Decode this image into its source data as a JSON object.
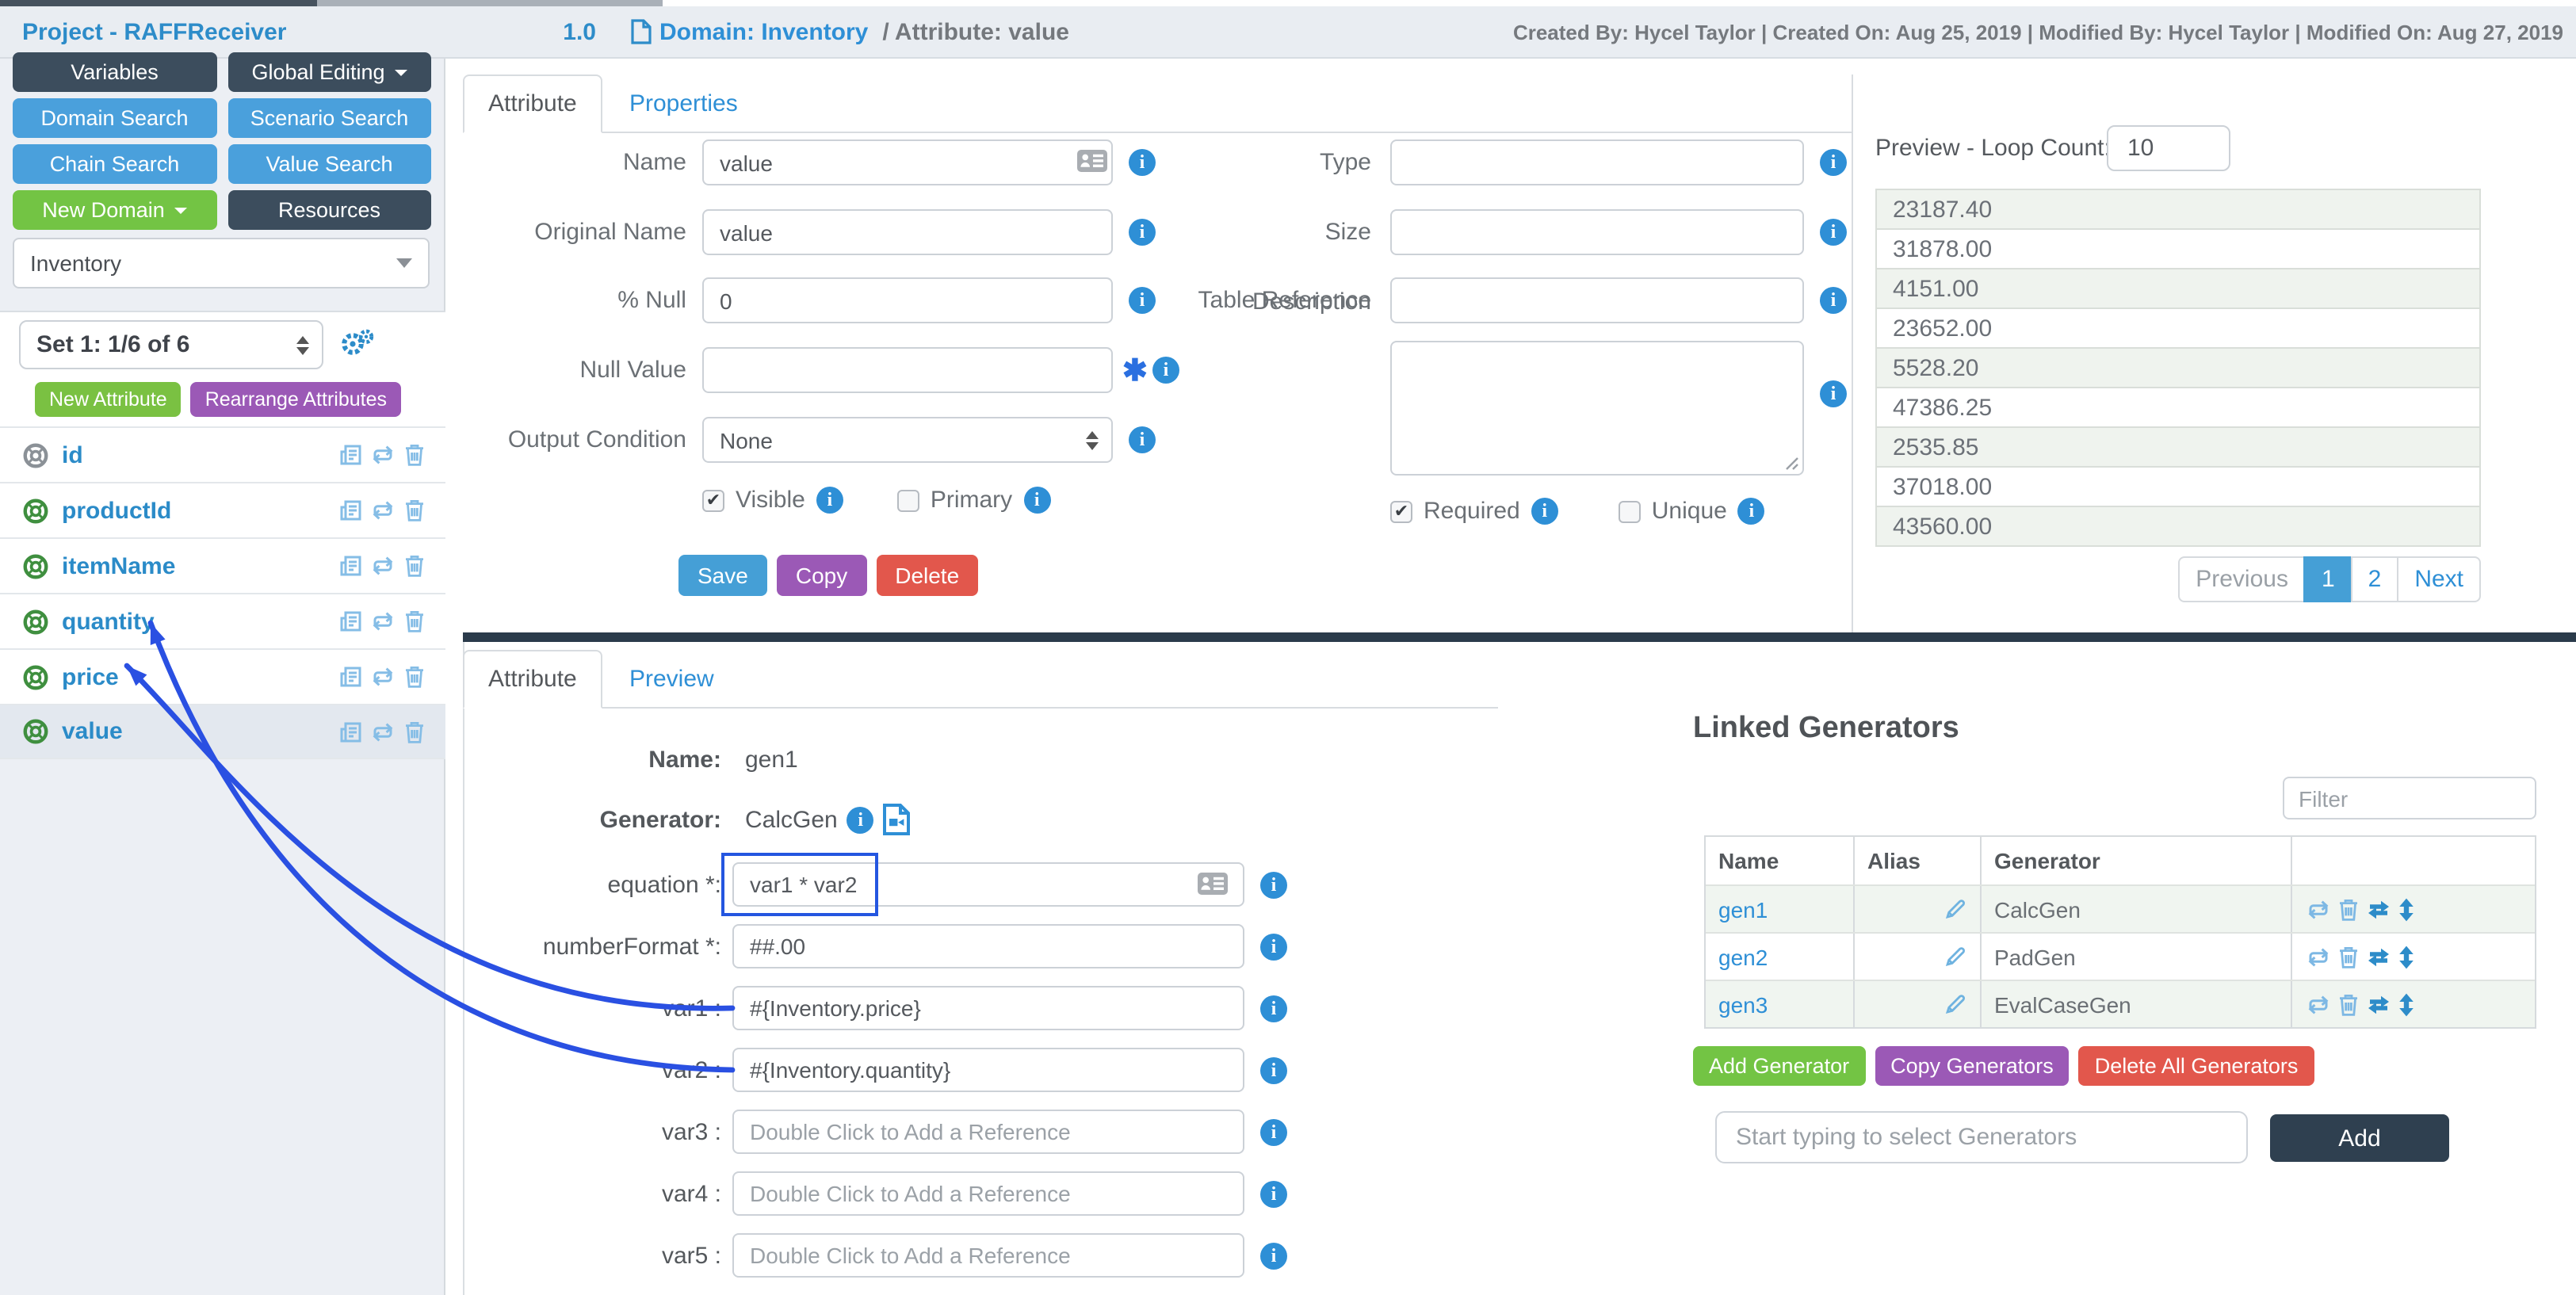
{
  "header": {
    "project_title": "Project - RAFFReceiver",
    "version": "1.0",
    "breadcrumb": {
      "domain_label": "Domain: Inventory",
      "attribute_label": "/ Attribute: value"
    },
    "meta": "Created By: Hycel Taylor | Created On: Aug 25, 2019 | Modified By: Hycel Taylor | Modified On: Aug 27, 2019"
  },
  "sidebar": {
    "buttons": [
      {
        "label": "Variables",
        "style": "dark",
        "caret": false
      },
      {
        "label": "Global Editing",
        "style": "dark",
        "caret": true
      },
      {
        "label": "Domain Search",
        "style": "blue",
        "caret": false
      },
      {
        "label": "Scenario Search",
        "style": "blue",
        "caret": false
      },
      {
        "label": "Chain Search",
        "style": "blue",
        "caret": false
      },
      {
        "label": "Value Search",
        "style": "blue",
        "caret": false
      },
      {
        "label": "New Domain",
        "style": "green",
        "caret": true
      },
      {
        "label": "Resources",
        "style": "dark",
        "caret": false
      }
    ],
    "domain_select_value": "Inventory",
    "set_select_value": "Set 1: 1/6 of 6",
    "new_attribute_label": "New Attribute",
    "rearrange_label": "Rearrange Attributes",
    "attributes": [
      {
        "name": "id",
        "icon": "gray",
        "selected": false
      },
      {
        "name": "productId",
        "icon": "green",
        "selected": false
      },
      {
        "name": "itemName",
        "icon": "green",
        "selected": false
      },
      {
        "name": "quantity",
        "icon": "green",
        "selected": false
      },
      {
        "name": "price",
        "icon": "green",
        "selected": false
      },
      {
        "name": "value",
        "icon": "green",
        "selected": true
      }
    ]
  },
  "attribute_form": {
    "tab_attribute": "Attribute",
    "tab_properties": "Properties",
    "fields": {
      "name": {
        "label": "Name",
        "value": "value"
      },
      "original_name": {
        "label": "Original Name",
        "value": "value"
      },
      "pct_null": {
        "label": "% Null",
        "value": "0"
      },
      "null_value": {
        "label": "Null Value",
        "value": ""
      },
      "output_condition": {
        "label": "Output Condition",
        "value": "None"
      },
      "type": {
        "label": "Type",
        "value": ""
      },
      "size": {
        "label": "Size",
        "value": ""
      },
      "table_reference": {
        "label": "Table Reference",
        "value": ""
      },
      "description": {
        "label": "Description",
        "value": ""
      }
    },
    "checkboxes": {
      "visible": {
        "label": "Visible",
        "checked": true
      },
      "primary": {
        "label": "Primary",
        "checked": false
      },
      "required": {
        "label": "Required",
        "checked": true
      },
      "unique": {
        "label": "Unique",
        "checked": false
      }
    },
    "buttons": {
      "save": "Save",
      "copy": "Copy",
      "delete": "Delete"
    }
  },
  "preview_panel": {
    "label": "Preview - Loop Count:",
    "loop_count": "10",
    "values": [
      "23187.40",
      "31878.00",
      "4151.00",
      "23652.00",
      "5528.20",
      "47386.25",
      "2535.85",
      "37018.00",
      "43560.00"
    ],
    "pagination": {
      "previous": "Previous",
      "pages": [
        "1",
        "2"
      ],
      "active_page": "1",
      "next": "Next"
    }
  },
  "generator_form": {
    "tab_attribute": "Attribute",
    "tab_preview": "Preview",
    "name_label": "Name:",
    "name_value": "gen1",
    "generator_label": "Generator:",
    "generator_value": "CalcGen",
    "equation": {
      "label": "equation *:",
      "value": "var1 * var2"
    },
    "number_format": {
      "label": "numberFormat *:",
      "value": "##.00"
    },
    "vars": [
      {
        "label": "var1 :",
        "value": "#{Inventory.price}",
        "placeholder": ""
      },
      {
        "label": "var2 :",
        "value": "#{Inventory.quantity}",
        "placeholder": ""
      },
      {
        "label": "var3 :",
        "value": "",
        "placeholder": "Double Click to Add a Reference"
      },
      {
        "label": "var4 :",
        "value": "",
        "placeholder": "Double Click to Add a Reference"
      },
      {
        "label": "var5 :",
        "value": "",
        "placeholder": "Double Click to Add a Reference"
      }
    ]
  },
  "linked_generators": {
    "title": "Linked Generators",
    "filter_placeholder": "Filter",
    "columns": [
      "Name",
      "Alias",
      "Generator"
    ],
    "rows": [
      {
        "name": "gen1",
        "alias": "",
        "generator": "CalcGen"
      },
      {
        "name": "gen2",
        "alias": "",
        "generator": "PadGen"
      },
      {
        "name": "gen3",
        "alias": "",
        "generator": "EvalCaseGen"
      }
    ],
    "buttons": {
      "add": "Add Generator",
      "copy": "Copy Generators",
      "delete_all": "Delete All Generators"
    },
    "select_placeholder": "Start typing to select Generators",
    "add_button": "Add"
  },
  "colors": {
    "link_blue": "#2d8cc9",
    "info_blue": "#2e8fd6",
    "arrow_blue": "#2a50e2",
    "dark_navy": "#3c4d5d",
    "green": "#73c444",
    "purple": "#9b59b6",
    "red": "#e2574c",
    "save_blue": "#459fd6",
    "dark_bar": "#2b3b4b",
    "add_dark": "#2f4050",
    "icon_light_blue": "#85bde6",
    "life_green": "#3f8f3f",
    "life_gray": "#8b9197"
  }
}
